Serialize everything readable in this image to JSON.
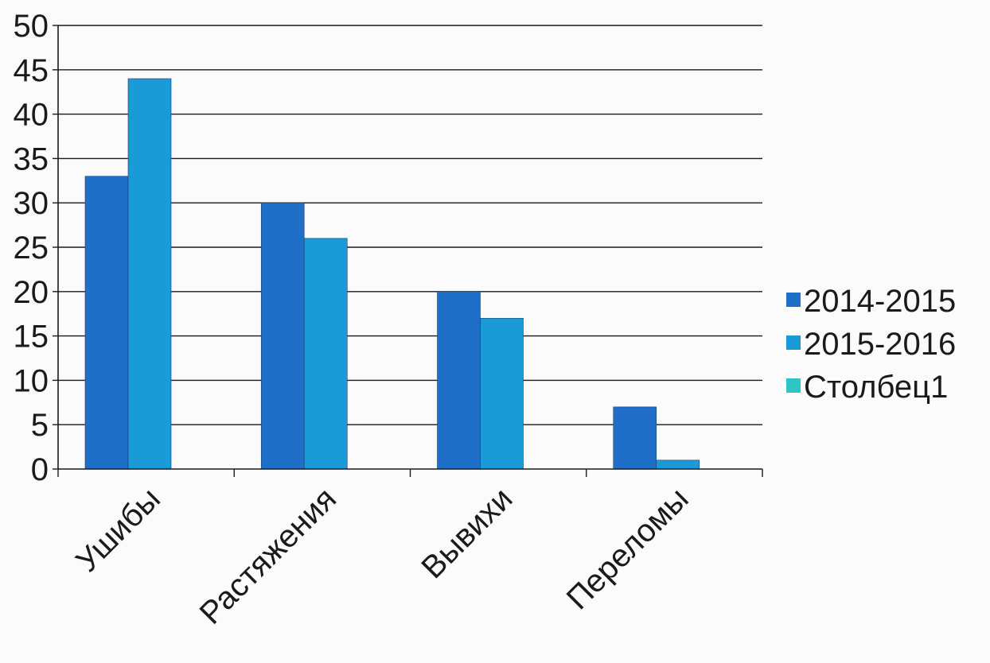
{
  "chart_data": {
    "type": "bar",
    "categories": [
      "Ушибы",
      "Растяжения",
      "Вывихи",
      "Переломы"
    ],
    "series": [
      {
        "name": "2014-2015",
        "values": [
          33,
          30,
          20,
          7
        ],
        "color": "#1f6fc8"
      },
      {
        "name": "2015-2016",
        "values": [
          44,
          26,
          17,
          1
        ],
        "color": "#1a9ad6"
      },
      {
        "name": "Столбец1",
        "values": [
          0,
          0,
          0,
          0
        ],
        "color": "#2cc6c6"
      }
    ],
    "ylim": [
      0,
      50
    ],
    "yticks": [
      "0",
      "5",
      "10",
      "15",
      "20",
      "25",
      "30",
      "35",
      "40",
      "45",
      "50"
    ],
    "grid": true,
    "legend_position": "right"
  }
}
